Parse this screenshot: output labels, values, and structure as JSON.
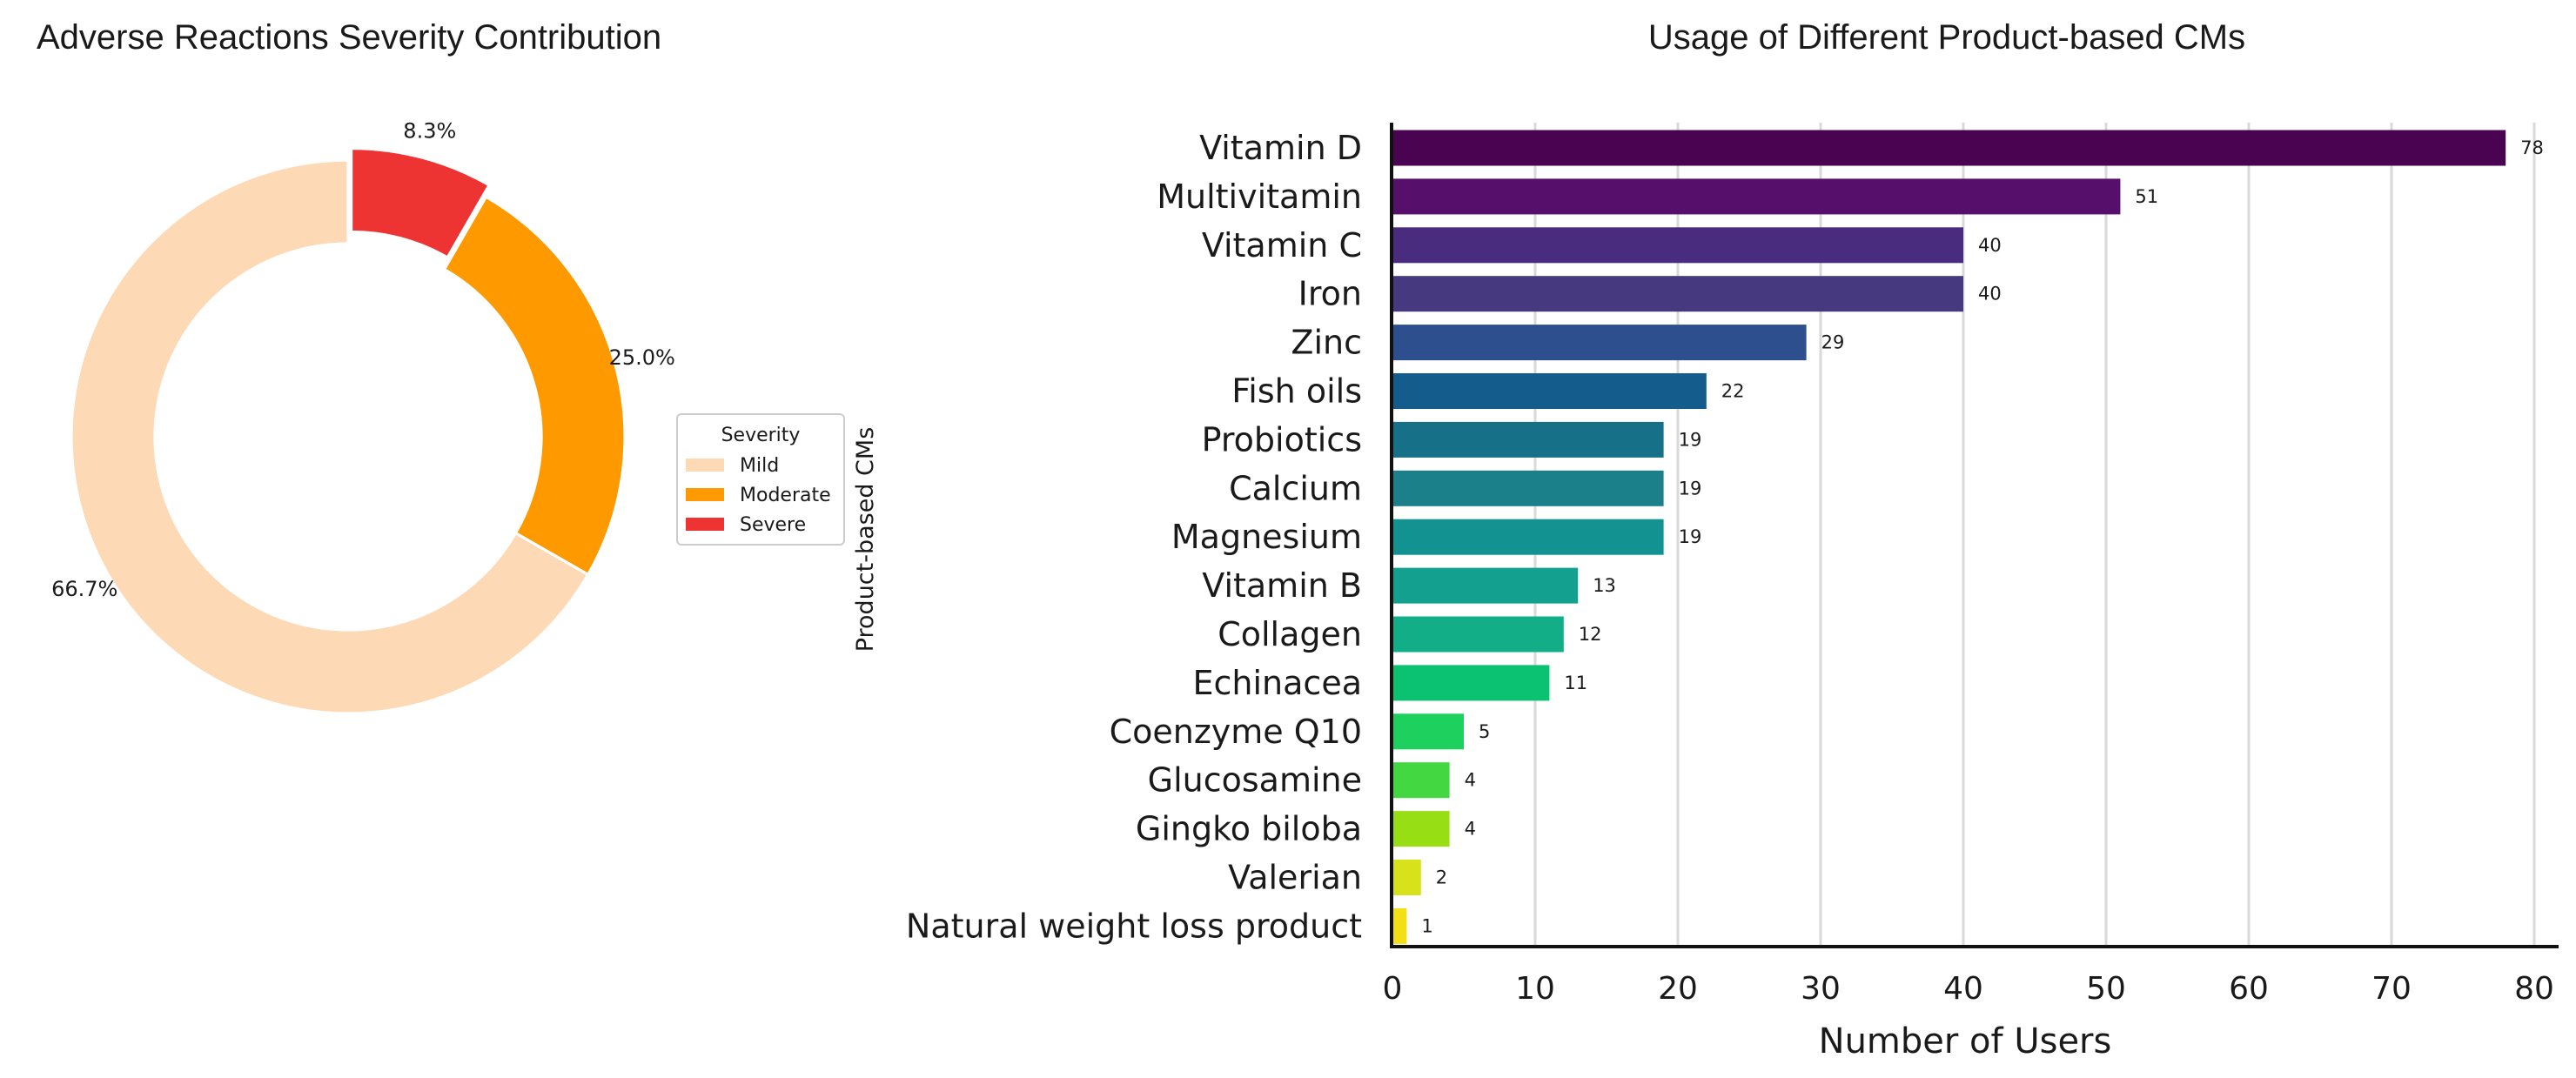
{
  "chart_data": [
    {
      "type": "pie",
      "style": "donut",
      "title": "Adverse Reactions Severity Contribution",
      "labels": [
        "Mild",
        "Moderate",
        "Severe"
      ],
      "values": [
        66.7,
        25.0,
        8.3
      ],
      "value_labels": [
        "66.7%",
        "25.0%",
        "8.3%"
      ],
      "colors": [
        "#FDDAB5",
        "#FF9900",
        "#EE3333"
      ],
      "exploded": [
        "Severe"
      ],
      "legend": {
        "title": "Severity",
        "placement": "right"
      }
    },
    {
      "type": "bar",
      "orientation": "horizontal",
      "title": "Usage of Different Product-based CMs",
      "xlabel": "Number of Users",
      "ylabel": "Product-based CMs",
      "xlim": [
        0,
        80
      ],
      "xticks": [
        0,
        10,
        20,
        30,
        40,
        50,
        60,
        70,
        80
      ],
      "grid": "vertical",
      "categories": [
        "Vitamin D",
        "Multivitamin",
        "Vitamin C",
        "Iron",
        "Zinc",
        "Fish oils",
        "Probiotics",
        "Calcium",
        "Magnesium",
        "Vitamin B",
        "Collagen",
        "Echinacea",
        "Coenzyme Q10",
        "Glucosamine",
        "Gingko biloba",
        "Valerian",
        "Natural weight loss product"
      ],
      "values": [
        78,
        51,
        40,
        40,
        29,
        22,
        19,
        19,
        19,
        13,
        12,
        11,
        5,
        4,
        4,
        2,
        1
      ],
      "colors": [
        "#4A0350",
        "#56106B",
        "#4A2C7E",
        "#46397F",
        "#2E4F8E",
        "#145C8C",
        "#167088",
        "#1B8089",
        "#129391",
        "#14A08F",
        "#12AE87",
        "#0AC272",
        "#1ED05D",
        "#43D742",
        "#98DE14",
        "#D8E21A",
        "#F3DF15"
      ]
    }
  ]
}
